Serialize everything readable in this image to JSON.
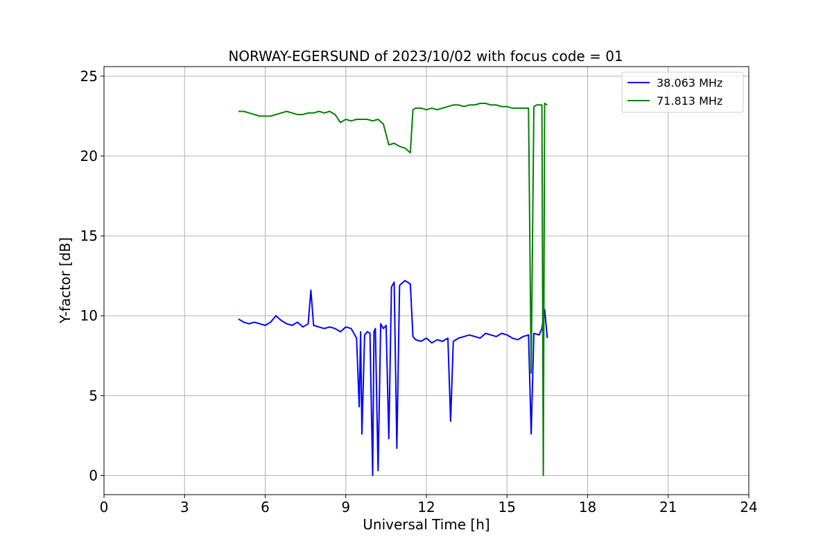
{
  "chart_data": {
    "type": "line",
    "title": "NORWAY-EGERSUND of 2023/10/02 with focus code = 01",
    "xlabel": "Universal Time [h]",
    "ylabel": "Y-factor [dB]",
    "xlim": [
      0,
      24
    ],
    "ylim": [
      -1.2,
      25.6
    ],
    "xticks": [
      0,
      3,
      6,
      9,
      12,
      15,
      18,
      21,
      24
    ],
    "yticks": [
      0,
      5,
      10,
      15,
      20,
      25
    ],
    "grid": true,
    "legend_position": "top-right",
    "series": [
      {
        "name": "38.063 MHz",
        "color": "#0000ff",
        "x": [
          5.0,
          5.2,
          5.4,
          5.6,
          5.8,
          6.0,
          6.2,
          6.4,
          6.6,
          6.8,
          7.0,
          7.2,
          7.4,
          7.6,
          7.7,
          7.8,
          8.0,
          8.2,
          8.4,
          8.6,
          8.8,
          9.0,
          9.2,
          9.4,
          9.5,
          9.55,
          9.6,
          9.7,
          9.8,
          9.9,
          10.0,
          10.05,
          10.1,
          10.2,
          10.3,
          10.4,
          10.5,
          10.6,
          10.7,
          10.8,
          10.9,
          11.0,
          11.2,
          11.4,
          11.5,
          11.6,
          11.8,
          12.0,
          12.2,
          12.4,
          12.6,
          12.8,
          12.9,
          13.0,
          13.2,
          13.4,
          13.6,
          13.8,
          14.0,
          14.2,
          14.4,
          14.6,
          14.8,
          15.0,
          15.2,
          15.4,
          15.6,
          15.8,
          15.9,
          16.0,
          16.2,
          16.3,
          16.4,
          16.5
        ],
        "values": [
          9.8,
          9.6,
          9.5,
          9.6,
          9.5,
          9.4,
          9.6,
          10.0,
          9.7,
          9.5,
          9.4,
          9.6,
          9.3,
          9.5,
          11.6,
          9.4,
          9.3,
          9.2,
          9.3,
          9.2,
          9.0,
          9.3,
          9.2,
          8.6,
          4.3,
          9.0,
          2.6,
          8.8,
          9.0,
          8.9,
          0.0,
          9.0,
          9.2,
          0.3,
          9.5,
          9.2,
          9.4,
          2.3,
          11.8,
          12.1,
          1.7,
          11.9,
          12.2,
          12.0,
          8.7,
          8.5,
          8.4,
          8.6,
          8.3,
          8.5,
          8.4,
          8.6,
          3.4,
          8.4,
          8.6,
          8.7,
          8.8,
          8.7,
          8.6,
          8.9,
          8.8,
          8.7,
          8.9,
          8.8,
          8.6,
          8.5,
          8.7,
          8.8,
          2.6,
          8.9,
          8.8,
          9.2,
          10.4,
          8.6
        ]
      },
      {
        "name": "71.813 MHz",
        "color": "#008000",
        "x": [
          5.0,
          5.2,
          5.4,
          5.6,
          5.8,
          6.0,
          6.2,
          6.4,
          6.6,
          6.8,
          7.0,
          7.2,
          7.4,
          7.6,
          7.8,
          8.0,
          8.2,
          8.4,
          8.6,
          8.8,
          9.0,
          9.2,
          9.4,
          9.6,
          9.8,
          10.0,
          10.2,
          10.4,
          10.6,
          10.8,
          11.0,
          11.2,
          11.4,
          11.5,
          11.6,
          11.8,
          12.0,
          12.2,
          12.4,
          12.6,
          12.8,
          13.0,
          13.2,
          13.4,
          13.6,
          13.8,
          14.0,
          14.2,
          14.4,
          14.6,
          14.8,
          15.0,
          15.2,
          15.4,
          15.6,
          15.8,
          15.9,
          16.0,
          16.1,
          16.2,
          16.3,
          16.35,
          16.4,
          16.5
        ],
        "values": [
          22.8,
          22.8,
          22.7,
          22.6,
          22.5,
          22.5,
          22.5,
          22.6,
          22.7,
          22.8,
          22.7,
          22.6,
          22.6,
          22.7,
          22.7,
          22.8,
          22.7,
          22.8,
          22.6,
          22.1,
          22.3,
          22.2,
          22.3,
          22.3,
          22.3,
          22.2,
          22.3,
          22.0,
          20.7,
          20.8,
          20.6,
          20.5,
          20.2,
          22.9,
          23.0,
          23.0,
          22.9,
          23.0,
          22.9,
          23.0,
          23.1,
          23.2,
          23.2,
          23.1,
          23.2,
          23.2,
          23.3,
          23.3,
          23.2,
          23.2,
          23.1,
          23.1,
          23.0,
          23.0,
          23.0,
          23.0,
          6.4,
          23.1,
          23.2,
          23.2,
          23.2,
          0.0,
          23.3,
          23.2
        ]
      }
    ]
  }
}
